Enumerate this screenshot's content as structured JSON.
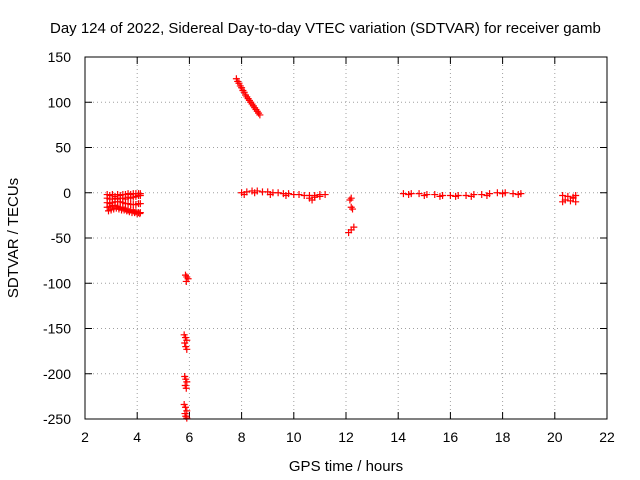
{
  "chart_data": {
    "type": "scatter",
    "title": "Day 124 of 2022, Sidereal Day-to-day VTEC variation (SDTVAR) for receiver gamb",
    "xlabel": "GPS time / hours",
    "ylabel": "SDTVAR / TECUs",
    "xlim": [
      2,
      22
    ],
    "ylim": [
      -250,
      150
    ],
    "xticks": [
      2,
      4,
      6,
      8,
      10,
      12,
      14,
      16,
      18,
      20,
      22
    ],
    "yticks": [
      150,
      100,
      50,
      0,
      -50,
      -100,
      -150,
      -200,
      -250
    ],
    "grid": true,
    "marker": "+",
    "series": [
      {
        "name": "SDTVAR",
        "color": "#ff0000",
        "points": [
          [
            2.85,
            -2
          ],
          [
            2.95,
            -3
          ],
          [
            3.05,
            -2
          ],
          [
            3.15,
            -4
          ],
          [
            3.25,
            -2
          ],
          [
            3.35,
            -3
          ],
          [
            3.45,
            -2
          ],
          [
            3.55,
            -2
          ],
          [
            3.65,
            -1
          ],
          [
            3.75,
            -2
          ],
          [
            3.85,
            -1
          ],
          [
            3.95,
            -1
          ],
          [
            4.05,
            -1
          ],
          [
            4.12,
            -1
          ],
          [
            2.85,
            -6
          ],
          [
            2.95,
            -7
          ],
          [
            3.05,
            -7
          ],
          [
            3.15,
            -6
          ],
          [
            3.25,
            -7
          ],
          [
            3.35,
            -6
          ],
          [
            3.45,
            -6
          ],
          [
            3.55,
            -7
          ],
          [
            3.65,
            -5
          ],
          [
            3.75,
            -6
          ],
          [
            3.85,
            -5
          ],
          [
            3.95,
            -4
          ],
          [
            4.05,
            -3
          ],
          [
            4.12,
            -3
          ],
          [
            2.85,
            -11
          ],
          [
            2.95,
            -12
          ],
          [
            3.05,
            -11
          ],
          [
            3.15,
            -10
          ],
          [
            3.25,
            -10
          ],
          [
            3.35,
            -10
          ],
          [
            3.45,
            -11
          ],
          [
            3.55,
            -12
          ],
          [
            3.65,
            -12
          ],
          [
            3.75,
            -13
          ],
          [
            3.85,
            -13
          ],
          [
            3.95,
            -13
          ],
          [
            4.05,
            -12
          ],
          [
            4.12,
            -12
          ],
          [
            2.85,
            -16
          ],
          [
            2.95,
            -15
          ],
          [
            3.05,
            -14
          ],
          [
            3.15,
            -14
          ],
          [
            3.25,
            -15
          ],
          [
            3.35,
            -16
          ],
          [
            3.45,
            -17
          ],
          [
            3.55,
            -18
          ],
          [
            3.65,
            -19
          ],
          [
            3.75,
            -19
          ],
          [
            3.85,
            -20
          ],
          [
            3.95,
            -21
          ],
          [
            4.05,
            -22
          ],
          [
            4.12,
            -22
          ],
          [
            2.9,
            -20
          ],
          [
            3.0,
            -19
          ],
          [
            3.1,
            -18
          ],
          [
            3.2,
            -17
          ],
          [
            3.3,
            -18
          ],
          [
            3.4,
            -19
          ],
          [
            3.5,
            -19
          ],
          [
            3.6,
            -20
          ],
          [
            3.7,
            -21
          ],
          [
            3.8,
            -22
          ],
          [
            3.9,
            -22
          ],
          [
            4.0,
            -23
          ],
          [
            4.1,
            -23
          ],
          [
            5.85,
            -91
          ],
          [
            5.9,
            -93
          ],
          [
            5.95,
            -95
          ],
          [
            5.88,
            -98
          ],
          [
            5.8,
            -157
          ],
          [
            5.85,
            -160
          ],
          [
            5.9,
            -163
          ],
          [
            5.82,
            -166
          ],
          [
            5.86,
            -170
          ],
          [
            5.9,
            -173
          ],
          [
            5.82,
            -203
          ],
          [
            5.86,
            -206
          ],
          [
            5.9,
            -209
          ],
          [
            5.84,
            -213
          ],
          [
            5.88,
            -216
          ],
          [
            5.8,
            -234
          ],
          [
            5.85,
            -237
          ],
          [
            5.9,
            -241
          ],
          [
            5.83,
            -244
          ],
          [
            5.86,
            -247
          ],
          [
            5.9,
            -249
          ],
          [
            7.8,
            126
          ],
          [
            7.85,
            123
          ],
          [
            7.9,
            121
          ],
          [
            7.95,
            118
          ],
          [
            8.0,
            116
          ],
          [
            8.05,
            113
          ],
          [
            8.1,
            111
          ],
          [
            8.15,
            108
          ],
          [
            8.2,
            106
          ],
          [
            8.25,
            104
          ],
          [
            8.3,
            102
          ],
          [
            8.35,
            100
          ],
          [
            8.4,
            98
          ],
          [
            8.45,
            96
          ],
          [
            8.5,
            94
          ],
          [
            8.55,
            92
          ],
          [
            8.6,
            90
          ],
          [
            8.65,
            88
          ],
          [
            8.7,
            86
          ],
          [
            8.0,
            0
          ],
          [
            8.2,
            1
          ],
          [
            8.4,
            2
          ],
          [
            8.6,
            2
          ],
          [
            8.8,
            1
          ],
          [
            9.0,
            1
          ],
          [
            9.2,
            0
          ],
          [
            9.4,
            0
          ],
          [
            9.6,
            -1
          ],
          [
            9.8,
            -1
          ],
          [
            10.0,
            -2
          ],
          [
            10.2,
            -2
          ],
          [
            10.4,
            -3
          ],
          [
            10.6,
            -3
          ],
          [
            10.8,
            -3
          ],
          [
            11.0,
            -2
          ],
          [
            11.2,
            -2
          ],
          [
            8.1,
            -2
          ],
          [
            8.5,
            0
          ],
          [
            9.1,
            -2
          ],
          [
            9.7,
            -3
          ],
          [
            10.6,
            -6
          ],
          [
            10.8,
            -5
          ],
          [
            11.0,
            -4
          ],
          [
            10.7,
            -8
          ],
          [
            12.2,
            -6
          ],
          [
            12.15,
            -8
          ],
          [
            12.2,
            -16
          ],
          [
            12.25,
            -18
          ],
          [
            12.1,
            -44
          ],
          [
            12.2,
            -41
          ],
          [
            12.3,
            -38
          ],
          [
            14.2,
            -1
          ],
          [
            14.5,
            -1
          ],
          [
            14.8,
            -1
          ],
          [
            15.1,
            -2
          ],
          [
            15.4,
            -2
          ],
          [
            15.7,
            -3
          ],
          [
            16.0,
            -3
          ],
          [
            16.3,
            -3
          ],
          [
            16.6,
            -3
          ],
          [
            16.9,
            -2
          ],
          [
            17.2,
            -2
          ],
          [
            17.5,
            -1
          ],
          [
            17.8,
            0
          ],
          [
            18.1,
            0
          ],
          [
            18.4,
            -1
          ],
          [
            18.7,
            -1
          ],
          [
            14.4,
            -2
          ],
          [
            15.0,
            -3
          ],
          [
            15.6,
            -4
          ],
          [
            16.2,
            -4
          ],
          [
            16.8,
            -4
          ],
          [
            17.4,
            -3
          ],
          [
            18.0,
            -1
          ],
          [
            18.6,
            -2
          ],
          [
            20.3,
            -3
          ],
          [
            20.5,
            -4
          ],
          [
            20.7,
            -5
          ],
          [
            20.8,
            -3
          ],
          [
            20.4,
            -8
          ],
          [
            20.6,
            -9
          ],
          [
            20.8,
            -10
          ],
          [
            20.3,
            -10
          ],
          [
            20.7,
            -6
          ]
        ]
      }
    ]
  }
}
